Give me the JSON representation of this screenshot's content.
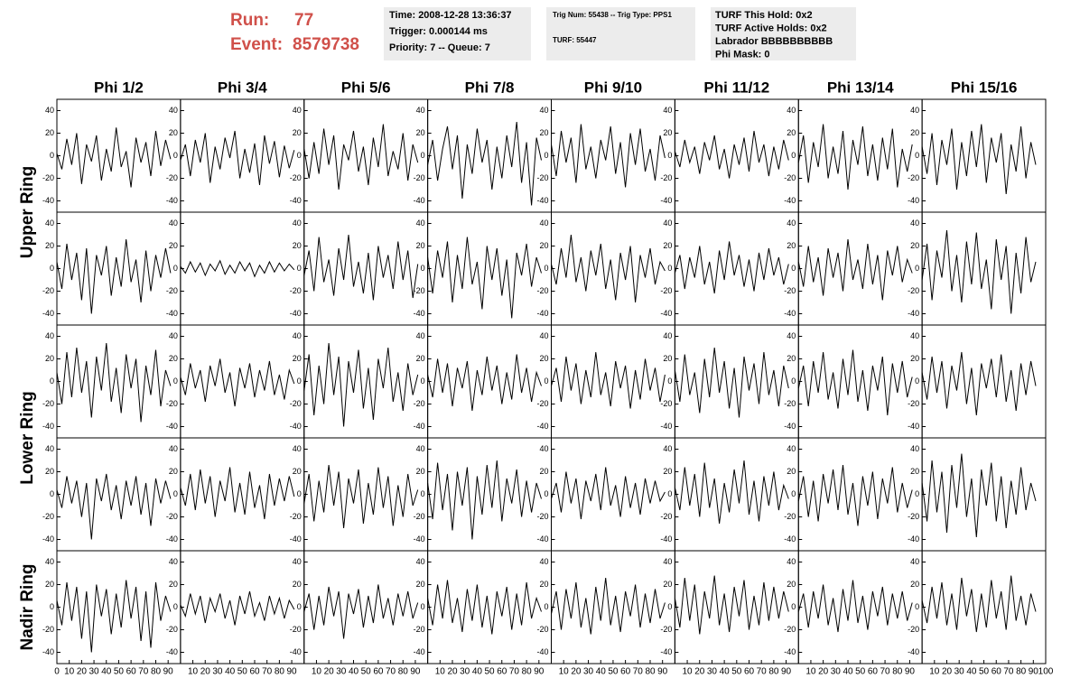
{
  "header": {
    "run_label": "Run:",
    "run": "77",
    "event_label": "Event:",
    "event": "8579738"
  },
  "info_boxes": [
    [
      "Time: 2008-12-28 13:36:37",
      "Trigger: 0.000144 ms",
      "Priority: 7 -- Queue: 7"
    ],
    [
      "Trig Num: 55438 -- Trig Type: PPS1",
      "TURF: 55447"
    ],
    [
      "TURF This Hold: 0x2",
      "TURF Active Holds: 0x2",
      "Labrador BBBBBBBBBB",
      "Phi Mask: 0"
    ]
  ],
  "chart_data": {
    "type": "line",
    "columns": [
      "Phi 1/2",
      "Phi 3/4",
      "Phi 5/6",
      "Phi 7/8",
      "Phi 9/10",
      "Phi 11/12",
      "Phi 13/14",
      "Phi 15/16"
    ],
    "ring_labels": [
      "Upper Ring",
      "Lower Ring",
      "Nadir Ring"
    ],
    "ylim": [
      -50,
      50
    ],
    "yticks": [
      -40,
      -20,
      0,
      20,
      40
    ],
    "xlim": [
      0,
      100
    ],
    "xticks": [
      0,
      10,
      20,
      30,
      40,
      50,
      60,
      70,
      80,
      90,
      100
    ],
    "color": "#000000",
    "x": [
      0,
      4,
      8,
      12,
      16,
      20,
      24,
      28,
      32,
      36,
      40,
      44,
      48,
      52,
      56,
      60,
      64,
      68,
      72,
      76,
      80,
      84,
      88,
      92
    ],
    "panels": [
      [
        [
          2,
          -12,
          15,
          -8,
          20,
          -25,
          10,
          -5,
          18,
          -22,
          6,
          -14,
          25,
          -10,
          4,
          -28,
          16,
          -6,
          12,
          -18,
          22,
          -9,
          14,
          -3
        ],
        [
          -4,
          10,
          -18,
          14,
          -6,
          20,
          -24,
          8,
          -12,
          16,
          -2,
          22,
          -20,
          6,
          -15,
          11,
          -26,
          18,
          -7,
          13,
          -19,
          9,
          -11,
          5
        ],
        [
          6,
          -20,
          12,
          -16,
          24,
          -8,
          18,
          -30,
          10,
          -4,
          22,
          -14,
          8,
          -26,
          16,
          -10,
          28,
          -18,
          4,
          -12,
          20,
          -22,
          10,
          -6
        ],
        [
          -8,
          14,
          -22,
          6,
          26,
          -12,
          18,
          -38,
          10,
          -16,
          24,
          -6,
          14,
          -30,
          8,
          -20,
          18,
          -10,
          30,
          -24,
          12,
          -44,
          16,
          -4
        ],
        [
          10,
          -18,
          22,
          -6,
          16,
          -24,
          28,
          -12,
          8,
          -20,
          14,
          -4,
          26,
          -16,
          12,
          -28,
          20,
          -8,
          24,
          -14,
          6,
          -22,
          18,
          -2
        ],
        [
          4,
          -10,
          14,
          -6,
          8,
          -16,
          12,
          -4,
          18,
          -12,
          6,
          -20,
          10,
          -8,
          16,
          -14,
          22,
          -6,
          10,
          -18,
          8,
          -12,
          14,
          -4
        ],
        [
          -6,
          18,
          -24,
          12,
          -10,
          28,
          -20,
          8,
          -16,
          22,
          -30,
          14,
          -8,
          26,
          -18,
          10,
          -22,
          16,
          -12,
          24,
          -28,
          6,
          -14,
          10
        ],
        [
          8,
          -16,
          20,
          -26,
          14,
          -8,
          24,
          -30,
          12,
          -18,
          22,
          -10,
          28,
          -24,
          16,
          -6,
          20,
          -34,
          10,
          -14,
          26,
          -20,
          12,
          -8
        ]
      ],
      [
        [
          6,
          -18,
          22,
          -10,
          14,
          -28,
          18,
          -40,
          12,
          -6,
          20,
          -24,
          10,
          -16,
          26,
          -12,
          8,
          -30,
          16,
          -20,
          12,
          -8,
          18,
          -4
        ],
        [
          2,
          -4,
          6,
          -3,
          5,
          -6,
          4,
          -2,
          7,
          -5,
          3,
          -4,
          6,
          -2,
          5,
          -7,
          3,
          -4,
          6,
          -3,
          5,
          -2,
          4,
          -1
        ],
        [
          -6,
          16,
          -20,
          28,
          -12,
          8,
          -24,
          18,
          -10,
          30,
          -16,
          6,
          -22,
          14,
          -28,
          20,
          -8,
          12,
          -18,
          24,
          -10,
          16,
          -26,
          4
        ],
        [
          10,
          -22,
          16,
          -8,
          24,
          -30,
          12,
          -18,
          28,
          -14,
          6,
          -36,
          20,
          -10,
          18,
          -24,
          8,
          -44,
          14,
          -6,
          22,
          -16,
          10,
          -4
        ],
        [
          4,
          -14,
          18,
          -8,
          30,
          -12,
          10,
          -20,
          16,
          -6,
          22,
          -18,
          8,
          -28,
          14,
          -10,
          20,
          -30,
          12,
          -8,
          18,
          -14,
          6,
          -2
        ],
        [
          -4,
          12,
          -18,
          10,
          -8,
          20,
          -14,
          6,
          -22,
          16,
          -10,
          24,
          -6,
          12,
          -16,
          8,
          -20,
          14,
          -10,
          18,
          -6,
          10,
          -14,
          4
        ],
        [
          6,
          -16,
          20,
          -12,
          10,
          -24,
          18,
          -8,
          14,
          -20,
          26,
          -10,
          8,
          -18,
          22,
          -14,
          12,
          -28,
          16,
          -6,
          20,
          -12,
          8,
          -4
        ],
        [
          -10,
          22,
          -28,
          16,
          -8,
          34,
          -20,
          12,
          -30,
          24,
          -14,
          32,
          -18,
          8,
          -36,
          26,
          -10,
          20,
          -40,
          14,
          -22,
          28,
          -12,
          6
        ]
      ],
      [
        [
          8,
          -20,
          26,
          -14,
          30,
          -10,
          18,
          -32,
          22,
          -8,
          34,
          -18,
          12,
          -28,
          24,
          -6,
          20,
          -36,
          14,
          -12,
          28,
          -22,
          10,
          -4
        ],
        [
          4,
          -12,
          16,
          -6,
          10,
          -18,
          14,
          -4,
          20,
          -10,
          8,
          -22,
          12,
          -6,
          16,
          -14,
          10,
          -8,
          18,
          -12,
          6,
          -16,
          10,
          -2
        ],
        [
          -8,
          24,
          -30,
          14,
          -20,
          34,
          -12,
          22,
          -40,
          18,
          -10,
          28,
          -24,
          12,
          -34,
          20,
          -6,
          30,
          -18,
          8,
          -26,
          16,
          -12,
          6
        ],
        [
          6,
          -14,
          20,
          -10,
          16,
          -22,
          12,
          -6,
          18,
          -26,
          10,
          -12,
          22,
          -8,
          14,
          -20,
          8,
          -16,
          24,
          -10,
          12,
          -18,
          8,
          -4
        ],
        [
          -4,
          12,
          -18,
          22,
          -8,
          16,
          -20,
          10,
          -14,
          26,
          -12,
          8,
          -22,
          18,
          -6,
          14,
          -24,
          10,
          -16,
          20,
          -8,
          12,
          -18,
          6
        ],
        [
          10,
          -18,
          24,
          -12,
          8,
          -28,
          20,
          -14,
          30,
          -10,
          18,
          -24,
          12,
          -32,
          22,
          -8,
          16,
          -20,
          26,
          -12,
          10,
          -22,
          14,
          -6
        ],
        [
          -6,
          14,
          -22,
          18,
          -10,
          26,
          -16,
          8,
          -24,
          20,
          -12,
          28,
          -18,
          10,
          -26,
          14,
          -8,
          22,
          -30,
          16,
          -10,
          18,
          -14,
          4
        ],
        [
          8,
          -16,
          22,
          -10,
          18,
          -24,
          14,
          -8,
          26,
          -20,
          12,
          -30,
          16,
          -6,
          20,
          -14,
          24,
          -18,
          10,
          -26,
          16,
          -12,
          18,
          -4
        ]
      ],
      [
        [
          4,
          -12,
          16,
          -8,
          12,
          -20,
          10,
          -40,
          14,
          -6,
          18,
          -14,
          8,
          -22,
          12,
          -10,
          16,
          -18,
          10,
          -28,
          14,
          -8,
          12,
          -4
        ],
        [
          6,
          -10,
          18,
          -14,
          22,
          -8,
          16,
          -20,
          12,
          -6,
          24,
          -16,
          10,
          -18,
          20,
          -12,
          8,
          -22,
          18,
          -10,
          14,
          -6,
          16,
          -2
        ],
        [
          -8,
          18,
          -24,
          12,
          -16,
          26,
          -10,
          20,
          -30,
          14,
          -8,
          22,
          -26,
          10,
          -18,
          24,
          -12,
          16,
          -28,
          8,
          -20,
          18,
          -10,
          4
        ],
        [
          10,
          -22,
          28,
          -14,
          18,
          -32,
          20,
          -10,
          24,
          -40,
          16,
          -18,
          26,
          -12,
          30,
          -24,
          14,
          -8,
          22,
          -20,
          12,
          -16,
          10,
          -4
        ],
        [
          -4,
          10,
          -16,
          20,
          -8,
          14,
          -22,
          12,
          -6,
          18,
          -14,
          24,
          -10,
          8,
          -20,
          16,
          -12,
          10,
          -18,
          14,
          -8,
          12,
          -6,
          2
        ],
        [
          6,
          -14,
          24,
          -10,
          18,
          -20,
          28,
          -12,
          14,
          -26,
          10,
          -16,
          22,
          -8,
          30,
          -18,
          12,
          -24,
          16,
          -10,
          20,
          -14,
          8,
          -4
        ],
        [
          -6,
          16,
          -20,
          12,
          -24,
          18,
          -8,
          22,
          -14,
          26,
          -18,
          10,
          -28,
          16,
          -10,
          20,
          -22,
          14,
          -8,
          24,
          -16,
          10,
          -12,
          4
        ],
        [
          10,
          -24,
          30,
          -16,
          20,
          -34,
          26,
          -12,
          36,
          -20,
          14,
          -38,
          22,
          -10,
          28,
          -24,
          16,
          -30,
          12,
          -18,
          24,
          -14,
          10,
          -6
        ]
      ],
      [
        [
          6,
          -16,
          22,
          -12,
          18,
          -28,
          14,
          -40,
          20,
          -8,
          16,
          -24,
          12,
          -18,
          24,
          -10,
          18,
          -30,
          14,
          -36,
          22,
          -12,
          10,
          -4
        ],
        [
          2,
          -8,
          12,
          -6,
          10,
          -14,
          8,
          -4,
          12,
          -10,
          6,
          -16,
          10,
          -6,
          14,
          -8,
          4,
          -12,
          10,
          -6,
          8,
          -10,
          6,
          -2
        ],
        [
          -4,
          12,
          -20,
          10,
          -16,
          18,
          -8,
          14,
          -28,
          12,
          -6,
          16,
          -18,
          10,
          -14,
          20,
          -10,
          8,
          -16,
          12,
          -8,
          14,
          -10,
          4
        ],
        [
          8,
          -16,
          20,
          -10,
          24,
          -14,
          8,
          -22,
          16,
          -12,
          20,
          -18,
          10,
          -24,
          14,
          -8,
          18,
          -20,
          12,
          -16,
          22,
          -10,
          8,
          -4
        ],
        [
          -6,
          14,
          -20,
          16,
          -10,
          22,
          -18,
          8,
          -24,
          18,
          -12,
          26,
          -16,
          10,
          -22,
          14,
          -8,
          20,
          -18,
          12,
          -14,
          16,
          -10,
          4
        ],
        [
          8,
          -18,
          26,
          -12,
          20,
          -24,
          14,
          -10,
          28,
          -16,
          12,
          -22,
          18,
          -8,
          24,
          -20,
          10,
          -16,
          22,
          -12,
          18,
          -10,
          14,
          -4
        ],
        [
          -4,
          12,
          -18,
          14,
          -10,
          20,
          -16,
          8,
          -22,
          16,
          -12,
          24,
          -14,
          10,
          -20,
          14,
          -8,
          18,
          -16,
          12,
          -10,
          14,
          -12,
          4
        ],
        [
          6,
          -14,
          18,
          -10,
          22,
          -16,
          12,
          -20,
          26,
          -8,
          16,
          -22,
          12,
          -18,
          24,
          -10,
          14,
          -20,
          28,
          -12,
          10,
          -16,
          12,
          -4
        ]
      ]
    ]
  }
}
